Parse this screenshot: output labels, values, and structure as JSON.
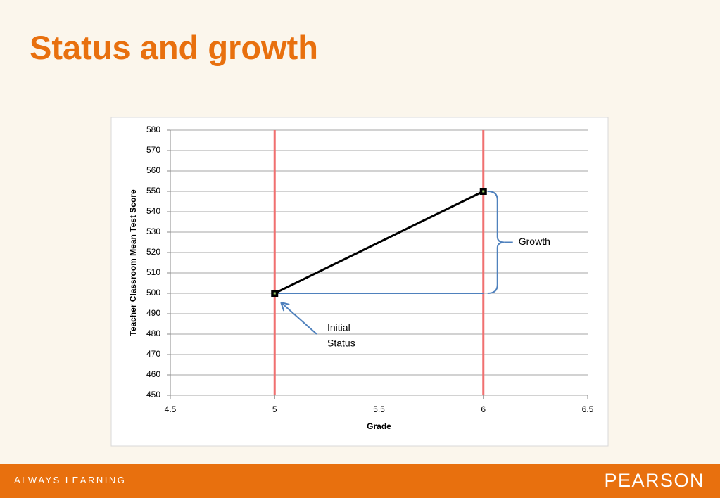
{
  "header": {
    "title": "Status and growth"
  },
  "chart_data": {
    "type": "line",
    "xlabel": "Grade",
    "ylabel": "Teacher Classroom Mean Test Score",
    "xlim": [
      4.5,
      6.5
    ],
    "xticks": [
      4.5,
      5,
      5.5,
      6,
      6.5
    ],
    "ylim": [
      450,
      580
    ],
    "yticks": [
      450,
      460,
      470,
      480,
      490,
      500,
      510,
      520,
      530,
      540,
      550,
      560,
      570,
      580
    ],
    "grid": true,
    "series": [
      {
        "color": "#000000",
        "x": [
          5,
          6
        ],
        "values": [
          500,
          550
        ]
      }
    ],
    "vlines": {
      "color": "#f07070",
      "x": [
        5,
        6
      ]
    },
    "baseline_color": "#4f81bd",
    "annotations": [
      {
        "text": "Growth"
      },
      {
        "lines": [
          "Initial",
          "Status"
        ]
      }
    ]
  },
  "footer": {
    "tagline": "ALWAYS LEARNING",
    "brand": "PEARSON"
  }
}
